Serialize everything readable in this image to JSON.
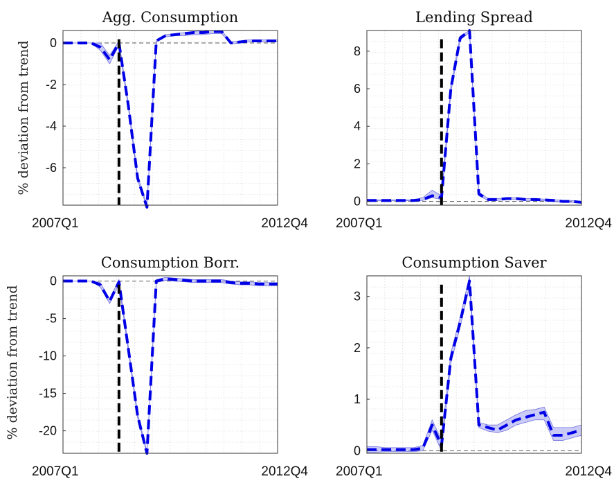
{
  "figure": {
    "ylabel": "% deviation from trend"
  },
  "chart_data": [
    {
      "type": "line",
      "title": "Agg. Consumption",
      "xlabels": [
        "2007Q1",
        "2012Q4"
      ],
      "ylim": [
        -7.8,
        0.6
      ],
      "yticks": [
        0,
        -2,
        -4,
        -6
      ],
      "xlim": [
        0,
        23
      ],
      "shock_x": 6,
      "series": [
        {
          "x": [
            0,
            1,
            2,
            3,
            4,
            5,
            6,
            7,
            8,
            9,
            10,
            11,
            12,
            13,
            14,
            15,
            16,
            17,
            18,
            19,
            20,
            21,
            22,
            23
          ],
          "values": [
            0,
            0,
            0,
            0,
            -0.2,
            -0.8,
            0,
            -3,
            -6.5,
            -7.9,
            0.1,
            0.35,
            0.4,
            0.45,
            0.5,
            0.5,
            0.55,
            0.55,
            0,
            0.05,
            0.1,
            0.1,
            0.1,
            0.1
          ],
          "lower": [
            0,
            0,
            0,
            0,
            -0.35,
            -1.0,
            -0.1,
            -3.1,
            -6.6,
            -7.9,
            0.05,
            0.3,
            0.35,
            0.35,
            0.4,
            0.4,
            0.45,
            0.45,
            -0.05,
            0,
            0.05,
            0.05,
            0.05,
            0.05
          ],
          "upper": [
            0,
            0,
            0,
            0,
            0,
            -0.6,
            0.1,
            -2.9,
            -6.4,
            -7.8,
            0.15,
            0.4,
            0.45,
            0.5,
            0.55,
            0.6,
            0.6,
            0.6,
            0.05,
            0.1,
            0.15,
            0.15,
            0.15,
            0.15
          ]
        }
      ]
    },
    {
      "type": "line",
      "title": "Lending Spread",
      "xlabels": [
        "2007Q1",
        "2012Q4"
      ],
      "ylim": [
        -0.2,
        9.1
      ],
      "yticks": [
        0,
        2,
        4,
        6,
        8
      ],
      "xlim": [
        0,
        23
      ],
      "shock_x": 8,
      "series": [
        {
          "x": [
            0,
            1,
            2,
            3,
            4,
            5,
            6,
            7,
            8,
            9,
            10,
            11,
            12,
            13,
            14,
            15,
            16,
            17,
            18,
            19,
            20,
            21,
            22,
            23
          ],
          "values": [
            0.05,
            0.05,
            0.05,
            0.05,
            0.05,
            0.05,
            0.1,
            0.3,
            0.2,
            6,
            8.7,
            9.1,
            0.4,
            0.1,
            0.1,
            0.15,
            0.15,
            0.1,
            0.1,
            0.08,
            0.05,
            0,
            0,
            -0.05
          ],
          "lower": [
            0.03,
            0.03,
            0.03,
            0.03,
            0.03,
            0.03,
            0.05,
            0.2,
            0.1,
            5.8,
            8.6,
            9.0,
            0.3,
            0.05,
            0.05,
            0.1,
            0.1,
            0.05,
            0.05,
            0.03,
            0,
            -0.05,
            -0.05,
            -0.1
          ],
          "upper": [
            0.08,
            0.08,
            0.08,
            0.08,
            0.08,
            0.08,
            0.2,
            0.6,
            0.3,
            6.2,
            8.8,
            9.1,
            0.5,
            0.15,
            0.15,
            0.2,
            0.2,
            0.15,
            0.15,
            0.12,
            0.1,
            0.05,
            0.05,
            0
          ]
        }
      ]
    },
    {
      "type": "line",
      "title": "Consumption Borr.",
      "xlabels": [
        "2007Q1",
        "2012Q4"
      ],
      "ylim": [
        -23,
        0.7
      ],
      "yticks": [
        0,
        -5,
        -10,
        -15,
        -20
      ],
      "xlim": [
        0,
        23
      ],
      "shock_x": 6,
      "series": [
        {
          "x": [
            0,
            1,
            2,
            3,
            4,
            5,
            6,
            7,
            8,
            9,
            10,
            11,
            12,
            13,
            14,
            15,
            16,
            17,
            18,
            19,
            20,
            21,
            22,
            23
          ],
          "values": [
            0,
            0,
            0,
            0,
            -0.5,
            -2.7,
            -0.1,
            -9,
            -18,
            -23,
            0,
            0.3,
            0.2,
            0.1,
            0,
            0,
            0,
            0,
            -0.2,
            -0.3,
            -0.3,
            -0.4,
            -0.4,
            -0.4
          ],
          "lower": [
            0,
            0,
            0,
            0,
            -0.8,
            -3.0,
            -0.4,
            -9.3,
            -18.3,
            -23,
            -0.2,
            0.1,
            0,
            -0.1,
            -0.2,
            -0.2,
            -0.2,
            -0.2,
            -0.4,
            -0.5,
            -0.5,
            -0.6,
            -0.6,
            -0.6
          ],
          "upper": [
            0,
            0,
            0,
            0,
            -0.2,
            -2.4,
            0.2,
            -8.7,
            -17.7,
            -22.8,
            0.2,
            0.5,
            0.4,
            0.3,
            0.2,
            0.2,
            0.2,
            0.2,
            0,
            -0.1,
            -0.1,
            -0.2,
            -0.2,
            -0.2
          ]
        }
      ]
    },
    {
      "type": "line",
      "title": "Consumption Saver",
      "xlabels": [
        "2007Q1",
        "2012Q4"
      ],
      "ylim": [
        -0.05,
        3.4
      ],
      "yticks": [
        0,
        1,
        2,
        3
      ],
      "xlim": [
        0,
        23
      ],
      "shock_x": 8,
      "series": [
        {
          "x": [
            0,
            1,
            2,
            3,
            4,
            5,
            6,
            7,
            8,
            9,
            10,
            11,
            12,
            13,
            14,
            15,
            16,
            17,
            18,
            19,
            20,
            21,
            22,
            23
          ],
          "values": [
            0.02,
            0.02,
            0.02,
            0.02,
            0.02,
            0.02,
            0.05,
            0.5,
            0.1,
            1.8,
            2.5,
            3.3,
            0.5,
            0.45,
            0.4,
            0.5,
            0.6,
            0.65,
            0.7,
            0.75,
            0.3,
            0.3,
            0.35,
            0.4
          ],
          "lower": [
            -0.03,
            -0.03,
            -0.02,
            -0.02,
            -0.02,
            -0.02,
            0,
            0.4,
            0,
            1.7,
            2.4,
            3.2,
            0.45,
            0.38,
            0.35,
            0.4,
            0.5,
            0.55,
            0.6,
            0.6,
            0.2,
            0.2,
            0.25,
            0.3
          ],
          "upper": [
            0.08,
            0.08,
            0.06,
            0.06,
            0.06,
            0.06,
            0.1,
            0.6,
            0.2,
            1.9,
            2.6,
            3.4,
            0.55,
            0.5,
            0.5,
            0.6,
            0.7,
            0.78,
            0.8,
            0.85,
            0.45,
            0.45,
            0.45,
            0.5
          ]
        }
      ]
    }
  ]
}
